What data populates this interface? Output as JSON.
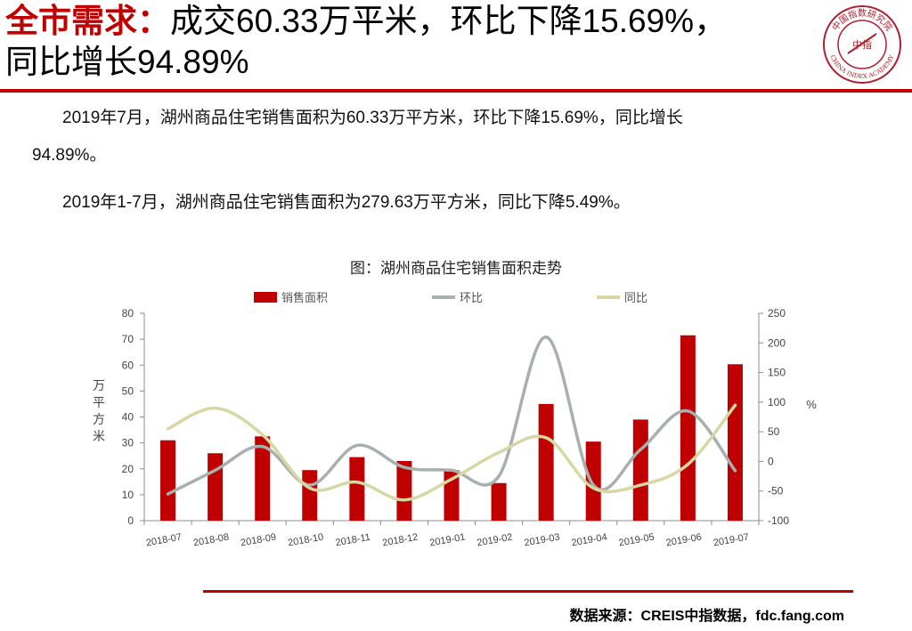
{
  "header": {
    "title_lead": "全市需求：",
    "title_rest": "成交60.33万平米，环比下降15.69%，",
    "title_line2": "同比增长94.89%",
    "accent_color": "#c00000"
  },
  "logo": {
    "text_top": "中国指数研究院",
    "text_center": "中指",
    "text_bottom": "CHINA INDEX ACADEMY"
  },
  "body": {
    "para1_line1": "2019年7月，湖州商品住宅销售面积为60.33万平方米，环比下降15.69%，同比增长",
    "para1_line2": "94.89%。",
    "para2": "2019年1-7月，湖州商品住宅销售面积为279.63万平方米，同比下降5.49%。"
  },
  "chart_data": {
    "type": "bar",
    "title": "图：湖州商品住宅销售面积走势",
    "categories": [
      "2018-07",
      "2018-08",
      "2018-09",
      "2018-10",
      "2018-11",
      "2018-12",
      "2019-01",
      "2019-02",
      "2019-03",
      "2019-04",
      "2019-05",
      "2019-06",
      "2019-07"
    ],
    "series": [
      {
        "name": "销售面积",
        "kind": "bar",
        "axis": "left",
        "color": "#c00000",
        "values": [
          31,
          26,
          32.5,
          19.5,
          24.5,
          23,
          19.5,
          14.5,
          45,
          30.5,
          39,
          71.5,
          60.33
        ]
      },
      {
        "name": "环比",
        "kind": "line",
        "axis": "right",
        "color": "#a6b0ae",
        "values": [
          -55,
          -15,
          25,
          -40,
          27,
          -10,
          -15,
          -25,
          210,
          -40,
          20,
          85,
          -15.69
        ]
      },
      {
        "name": "同比",
        "kind": "line",
        "axis": "right",
        "color": "#d6d7a3",
        "values": [
          55,
          90,
          45,
          -45,
          -35,
          -65,
          -30,
          15,
          40,
          -45,
          -40,
          -5,
          94.89
        ]
      }
    ],
    "ylabel": "万平方米",
    "ylim": [
      0,
      80
    ],
    "yticks": [
      "0",
      "10",
      "20",
      "30",
      "40",
      "50",
      "60",
      "70",
      "80"
    ],
    "y2label": "%",
    "y2lim": [
      -100,
      250
    ],
    "y2ticks": [
      "-100",
      "-50",
      "0",
      "50",
      "100",
      "150",
      "200",
      "250"
    ],
    "legend_position": "top",
    "grid": false
  },
  "footer": {
    "source": "数据来源：CREIS中指数据，fdc.fang.com"
  }
}
